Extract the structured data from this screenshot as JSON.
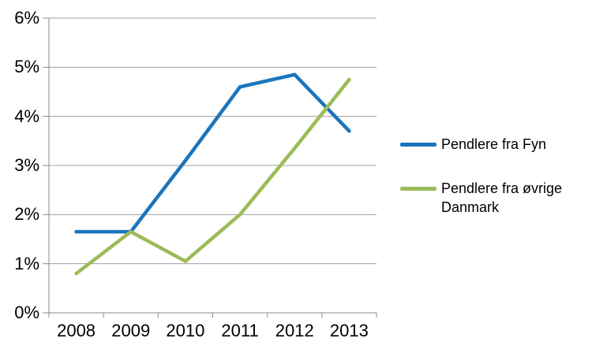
{
  "chart_data": {
    "type": "line",
    "categories": [
      "2008",
      "2009",
      "2010",
      "2011",
      "2012",
      "2013"
    ],
    "series": [
      {
        "name": "Pendlere fra Fyn",
        "color": "#1b75bc",
        "values": [
          1.65,
          1.65,
          3.1,
          4.6,
          4.85,
          3.7
        ]
      },
      {
        "name": "Pendlere fra øvrige Danmark",
        "color": "#9bbb59",
        "values": [
          0.8,
          1.65,
          1.05,
          2.0,
          3.35,
          4.75
        ]
      }
    ],
    "title": "",
    "xlabel": "",
    "ylabel": "",
    "ylim": [
      0,
      6
    ],
    "yticks": [
      {
        "value": 0,
        "label": "0%"
      },
      {
        "value": 1,
        "label": "1%"
      },
      {
        "value": 2,
        "label": "2%"
      },
      {
        "value": 3,
        "label": "3%"
      },
      {
        "value": 4,
        "label": "4%"
      },
      {
        "value": 5,
        "label": "5%"
      },
      {
        "value": 6,
        "label": "6%"
      }
    ],
    "grid": true,
    "legend_position": "right"
  },
  "colors": {
    "background": "#ffffff",
    "gridline": "#a0a0a0",
    "axis": "#8a8a8a",
    "tick_label": "#000000",
    "legend_text": "#000000"
  }
}
